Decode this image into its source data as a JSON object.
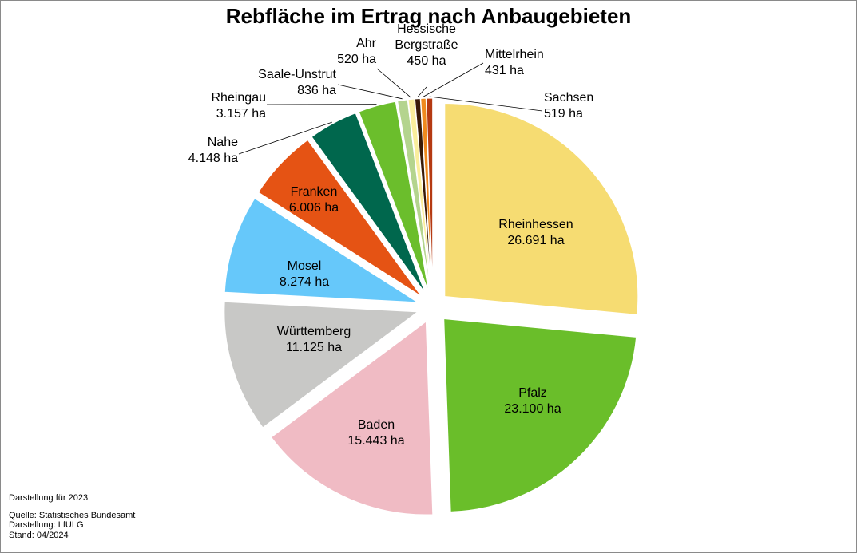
{
  "chart_data": {
    "type": "pie",
    "title": "Rebfläche im Ertrag nach Anbaugebieten",
    "unit": "ha",
    "slices": [
      {
        "name": "Rheinhessen",
        "value": 26691,
        "label": "26.691 ha",
        "color": "#F6DC72"
      },
      {
        "name": "Pfalz",
        "value": 23100,
        "label": "23.100 ha",
        "color": "#6ABE2A"
      },
      {
        "name": "Baden",
        "value": 15443,
        "label": "15.443 ha",
        "color": "#F0BBC4"
      },
      {
        "name": "Württemberg",
        "value": 11125,
        "label": "11.125 ha",
        "color": "#C8C8C6"
      },
      {
        "name": "Mosel",
        "value": 8274,
        "label": "8.274 ha",
        "color": "#66C8FA"
      },
      {
        "name": "Franken",
        "value": 6006,
        "label": "6.006 ha",
        "color": "#E55314"
      },
      {
        "name": "Nahe",
        "value": 4148,
        "label": "4.148 ha",
        "color": "#00674D"
      },
      {
        "name": "Rheingau",
        "value": 3157,
        "label": "3.157 ha",
        "color": "#6BBE2C"
      },
      {
        "name": "Saale-Unstrut",
        "value": 836,
        "label": "836 ha",
        "color": "#B4D48E"
      },
      {
        "name": "Ahr",
        "value": 520,
        "label": "520 ha",
        "color": "#FAEE9C"
      },
      {
        "name": "Hessische Bergstraße",
        "value": 450,
        "label": "450 ha",
        "color": "#3A1A06"
      },
      {
        "name": "Mittelrhein",
        "value": 431,
        "label": "431 ha",
        "color": "#F08A1E"
      },
      {
        "name": "Sachsen",
        "value": 519,
        "label": "519 ha",
        "color": "#B53A12"
      }
    ]
  },
  "footnotes": {
    "year_note": "Darstellung für 2023",
    "source": "Quelle: Statistisches Bundesamt",
    "author": "Darstellung: LfULG",
    "date": "Stand: 04/2024"
  }
}
